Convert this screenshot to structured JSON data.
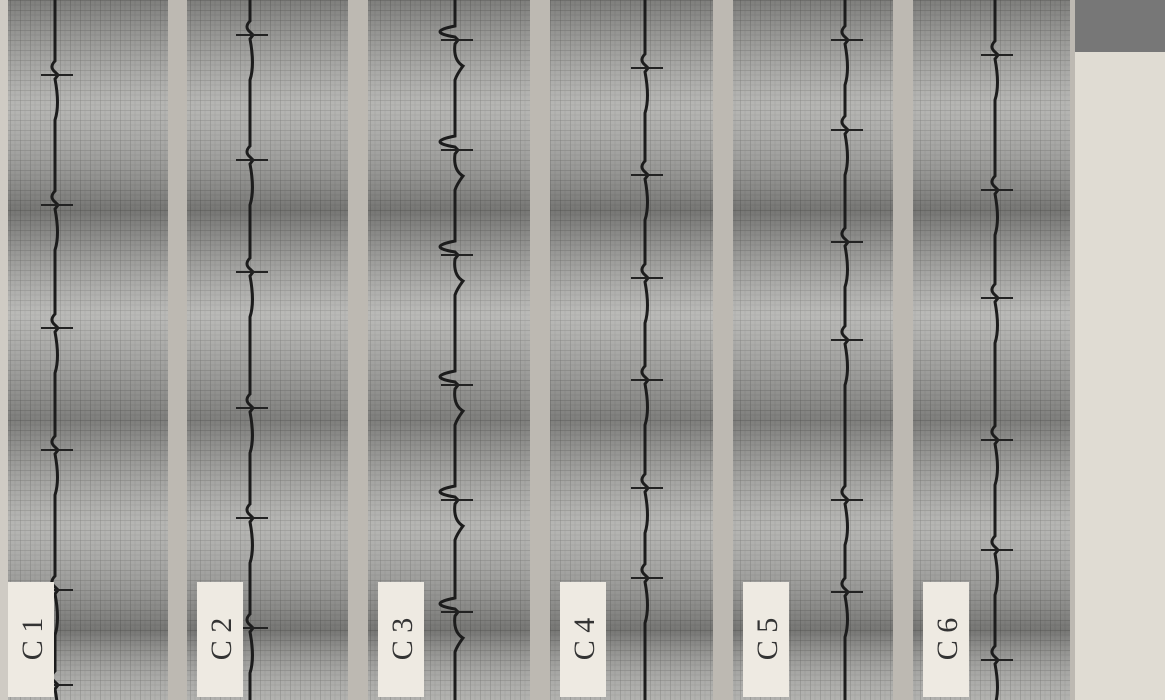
{
  "strips": [
    {
      "label": "C 1"
    },
    {
      "label": "C 2"
    },
    {
      "label": "C 3"
    },
    {
      "label": "C 4"
    },
    {
      "label": "C 5"
    },
    {
      "label": "C 6"
    }
  ]
}
